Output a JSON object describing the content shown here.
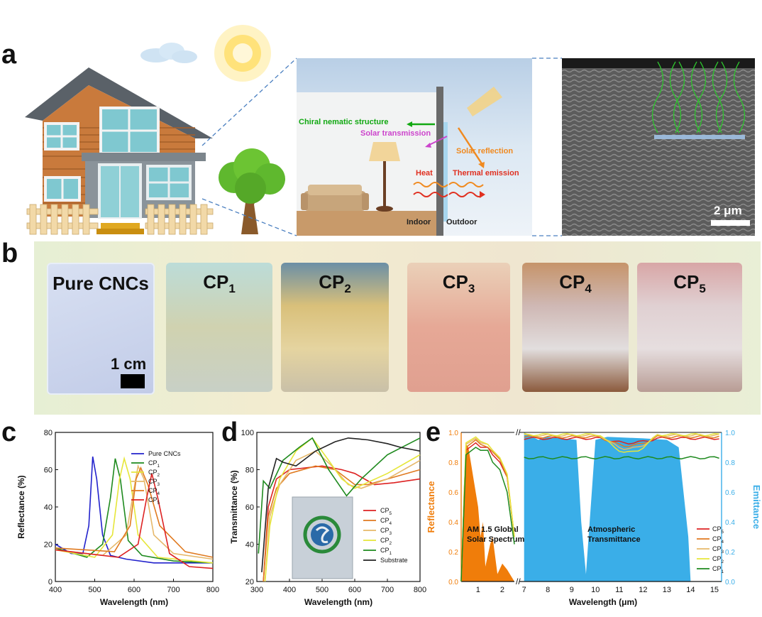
{
  "panel_labels": {
    "a": "a",
    "b": "b",
    "c": "c",
    "d": "d",
    "e": "e"
  },
  "panel_a": {
    "diagram_labels": {
      "chiral": "Chiral nematic structure",
      "solar_transmission": "Solar transmission",
      "solar_reflection": "Solar reflection",
      "heat": "Heat",
      "thermal_emission": "Thermal emission",
      "indoor": "Indoor",
      "outdoor": "Outdoor"
    },
    "sem_scale": "2 μm"
  },
  "panel_b": {
    "samples": [
      {
        "name": "Pure CNCs",
        "sub": "",
        "color": "#cfd9ee"
      },
      {
        "name": "CP",
        "sub": "1",
        "color": "#c9d2b8"
      },
      {
        "name": "CP",
        "sub": "2",
        "color": "#d7cfa0"
      },
      {
        "name": "CP",
        "sub": "3",
        "color": "#e0b8a2"
      },
      {
        "name": "CP",
        "sub": "4",
        "color": "#c9a99a"
      },
      {
        "name": "CP",
        "sub": "5",
        "color": "#d8c2c3"
      }
    ],
    "scale_bar": "1 cm"
  },
  "chart_data": [
    {
      "type": "line",
      "panel": "c",
      "xlabel": "Wavelength (nm)",
      "ylabel": "Reflectance (%)",
      "xlim": [
        400,
        800
      ],
      "ylim": [
        0,
        80
      ],
      "xticks": [
        400,
        500,
        600,
        700,
        800
      ],
      "yticks": [
        0,
        20,
        40,
        60,
        80
      ],
      "legend_position": "top-right",
      "series": [
        {
          "name": "Pure CNCs",
          "sub": "",
          "color": "#2222cc",
          "x": [
            400,
            440,
            470,
            485,
            495,
            505,
            520,
            540,
            580,
            650,
            800
          ],
          "y": [
            20,
            15,
            15,
            30,
            67,
            55,
            25,
            14,
            12,
            10,
            10
          ]
        },
        {
          "name": "CP",
          "sub": "1",
          "color": "#1e8a1e",
          "x": [
            400,
            480,
            520,
            540,
            552,
            565,
            585,
            620,
            700,
            800
          ],
          "y": [
            18,
            13,
            20,
            45,
            66,
            55,
            22,
            14,
            11,
            10
          ]
        },
        {
          "name": "CP",
          "sub": "2",
          "color": "#e6e63a",
          "x": [
            400,
            500,
            545,
            563,
            575,
            590,
            610,
            660,
            800
          ],
          "y": [
            17,
            13,
            25,
            55,
            66,
            55,
            25,
            13,
            10
          ]
        },
        {
          "name": "CP",
          "sub": "3",
          "color": "#e6b86a",
          "x": [
            400,
            520,
            580,
            600,
            610,
            625,
            650,
            700,
            800
          ],
          "y": [
            17,
            14,
            25,
            50,
            62,
            55,
            25,
            15,
            12
          ]
        },
        {
          "name": "CP",
          "sub": "4",
          "color": "#e07a20",
          "x": [
            400,
            550,
            590,
            605,
            617,
            635,
            665,
            730,
            800
          ],
          "y": [
            18,
            16,
            30,
            55,
            61,
            52,
            30,
            16,
            13
          ]
        },
        {
          "name": "CP",
          "sub": "5",
          "color": "#dd2222",
          "x": [
            400,
            560,
            610,
            632,
            645,
            660,
            690,
            740,
            800
          ],
          "y": [
            17,
            13,
            20,
            45,
            58,
            45,
            15,
            8,
            7
          ]
        }
      ]
    },
    {
      "type": "line",
      "panel": "d",
      "xlabel": "Wavelength (nm)",
      "ylabel": "Transmittance (%)",
      "xlim": [
        300,
        800
      ],
      "ylim": [
        20,
        100
      ],
      "xticks": [
        300,
        400,
        500,
        600,
        700,
        800
      ],
      "yticks": [
        20,
        40,
        60,
        80,
        100
      ],
      "legend_position": "bottom-right",
      "series": [
        {
          "name": "CP",
          "sub": "5",
          "color": "#dd2222",
          "x": [
            320,
            335,
            360,
            400,
            500,
            560,
            600,
            660,
            720,
            800
          ],
          "y": [
            20,
            60,
            75,
            80,
            82,
            80,
            78,
            72,
            73,
            75
          ]
        },
        {
          "name": "CP",
          "sub": "4",
          "color": "#e07a20",
          "x": [
            320,
            335,
            360,
            400,
            480,
            540,
            600,
            640,
            700,
            800
          ],
          "y": [
            20,
            55,
            70,
            78,
            82,
            80,
            72,
            72,
            75,
            80
          ]
        },
        {
          "name": "CP",
          "sub": "3",
          "color": "#e6b86a",
          "x": [
            325,
            340,
            370,
            420,
            480,
            530,
            580,
            620,
            700,
            800
          ],
          "y": [
            20,
            55,
            72,
            85,
            90,
            82,
            72,
            70,
            75,
            85
          ]
        },
        {
          "name": "CP",
          "sub": "2",
          "color": "#e6e63a",
          "x": [
            325,
            340,
            370,
            420,
            470,
            520,
            560,
            600,
            700,
            800
          ],
          "y": [
            20,
            50,
            75,
            90,
            97,
            85,
            75,
            70,
            78,
            88
          ]
        },
        {
          "name": "CP",
          "sub": "1",
          "color": "#1e8a1e",
          "x": [
            305,
            320,
            340,
            380,
            430,
            470,
            520,
            575,
            620,
            700,
            800
          ],
          "y": [
            35,
            74,
            70,
            85,
            92,
            97,
            80,
            66,
            75,
            88,
            97
          ]
        },
        {
          "name": "Substrate",
          "sub": "",
          "color": "#222222",
          "x": [
            315,
            335,
            360,
            380,
            420,
            480,
            540,
            580,
            640,
            700,
            740,
            800
          ],
          "y": [
            25,
            70,
            86,
            84,
            82,
            90,
            95,
            97,
            96,
            94,
            92,
            90
          ]
        }
      ]
    },
    {
      "type": "area",
      "panel": "e",
      "xlabel": "Wavelength (μm)",
      "ylabel_left": "Reflectance",
      "ylabel_right": "Emittance",
      "xticks_left": [
        1,
        2
      ],
      "xticks_right": [
        7,
        8,
        9,
        10,
        11,
        12,
        13,
        14,
        15
      ],
      "yticks": [
        0.0,
        0.2,
        0.4,
        0.6,
        0.8,
        1.0
      ],
      "ylim": [
        0,
        1.0
      ],
      "legend_position": "bottom-right",
      "annotations": {
        "solar": [
          "AM 1.5 Global",
          "Solar Spectrum"
        ],
        "atm": [
          "Atmospheric",
          "Transmittance"
        ]
      },
      "background_series": {
        "solar": {
          "color": "#f07d0a",
          "x": [
            0.3,
            0.4,
            0.5,
            0.6,
            0.8,
            1.0,
            1.1,
            1.2,
            1.3,
            1.5,
            1.6,
            1.8,
            2.0,
            2.2,
            2.5
          ],
          "y": [
            0,
            0.6,
            0.92,
            0.9,
            0.7,
            0.5,
            0.3,
            0.4,
            0.1,
            0.25,
            0.3,
            0.05,
            0.12,
            0.08,
            0
          ]
        },
        "atm": {
          "color": "#3aaee8",
          "x": [
            7,
            7.6,
            8,
            9.2,
            9.4,
            9.6,
            9.8,
            10,
            10.5,
            12,
            13,
            13.5,
            13.9,
            14,
            15.3
          ],
          "y": [
            1,
            0.95,
            0.97,
            0.95,
            0.4,
            0.05,
            0.5,
            0.95,
            0.97,
            0.96,
            0.95,
            0.9,
            0.3,
            0,
            0
          ]
        }
      },
      "series": [
        {
          "name": "CP",
          "sub": "5",
          "color": "#dd2222",
          "nir_x": [
            0.3,
            0.5,
            0.9,
            1.1,
            1.4,
            1.6,
            1.9,
            2.2,
            2.5
          ],
          "nir_y": [
            0,
            0.88,
            0.93,
            0.9,
            0.9,
            0.85,
            0.8,
            0.7,
            0.3
          ],
          "ir_y": 0.96
        },
        {
          "name": "CP",
          "sub": "4",
          "color": "#e07a20",
          "nir_x": [
            0.3,
            0.5,
            0.9,
            1.1,
            1.4,
            1.6,
            1.9,
            2.2,
            2.5
          ],
          "nir_y": [
            0,
            0.9,
            0.95,
            0.92,
            0.9,
            0.87,
            0.82,
            0.7,
            0.3
          ],
          "ir_y": 0.97
        },
        {
          "name": "CP",
          "sub": "3",
          "color": "#e6b86a",
          "nir_x": [
            0.3,
            0.5,
            0.9,
            1.1,
            1.4,
            1.6,
            1.9,
            2.2,
            2.5
          ],
          "nir_y": [
            0,
            0.92,
            0.96,
            0.93,
            0.92,
            0.88,
            0.83,
            0.72,
            0.3
          ],
          "ir_y": 0.98
        },
        {
          "name": "CP",
          "sub": "2",
          "color": "#e6e63a",
          "nir_x": [
            0.3,
            0.5,
            0.9,
            1.1,
            1.4,
            1.6,
            1.9,
            2.2,
            2.5
          ],
          "nir_y": [
            0,
            0.93,
            0.97,
            0.94,
            0.92,
            0.88,
            0.83,
            0.72,
            0.3
          ],
          "ir_y": 0.985
        },
        {
          "name": "CP",
          "sub": "1",
          "color": "#1e8a1e",
          "nir_x": [
            0.3,
            0.5,
            0.9,
            1.1,
            1.4,
            1.6,
            1.9,
            2.2,
            2.5
          ],
          "nir_y": [
            0,
            0.85,
            0.9,
            0.88,
            0.88,
            0.8,
            0.75,
            0.6,
            0.25
          ],
          "ir_y": 0.83
        }
      ]
    }
  ]
}
